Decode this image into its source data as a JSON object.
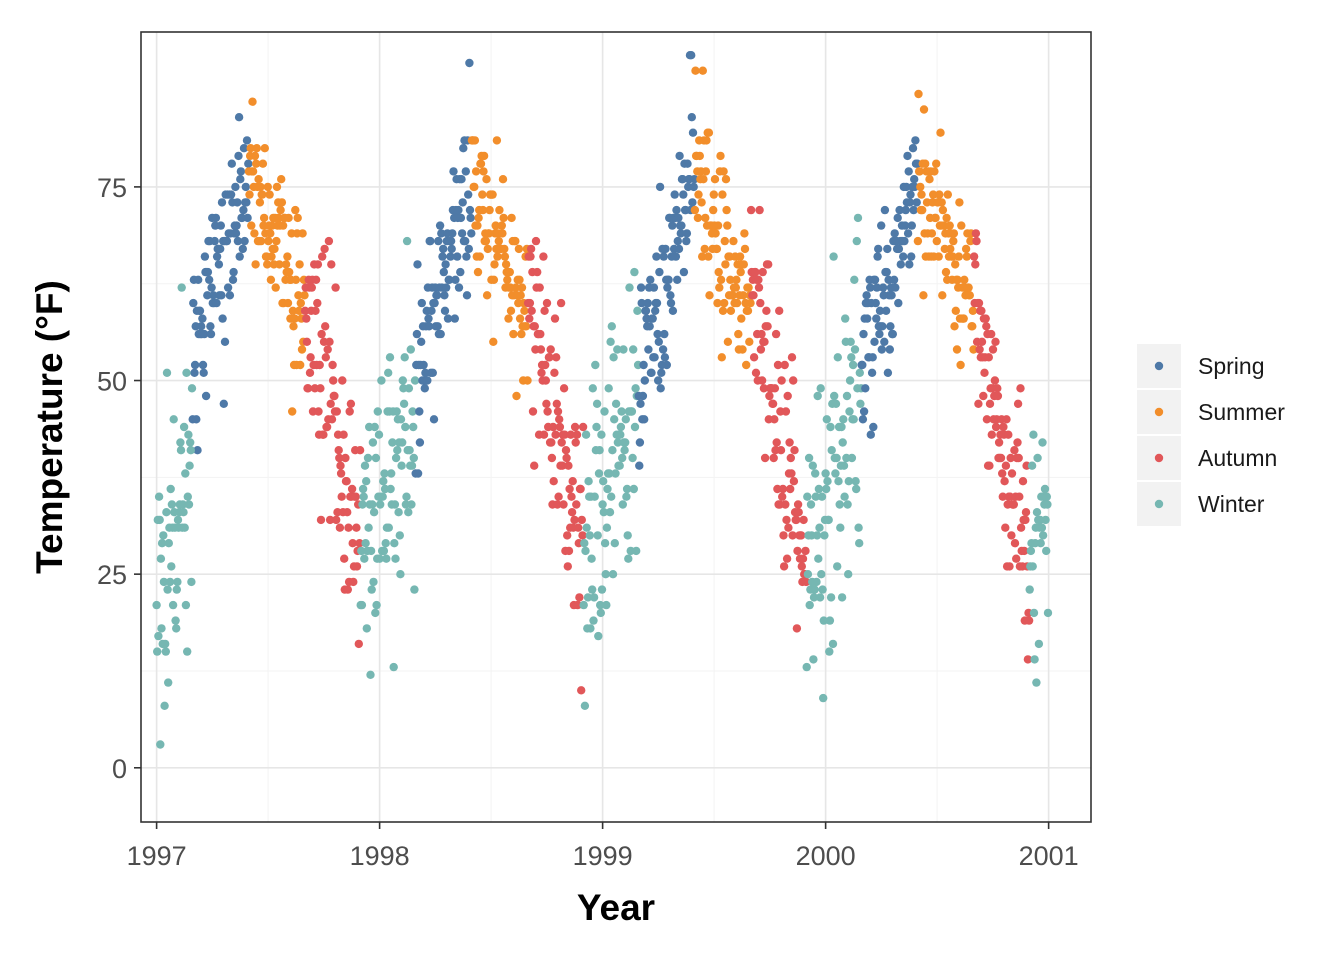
{
  "chart_data": {
    "type": "scatter",
    "title": "",
    "xlabel": "Year",
    "ylabel": "Temperature (°F)",
    "xlim": [
      1996.93,
      2001.19
    ],
    "ylim": [
      -7,
      95
    ],
    "x_ticks": [
      1997,
      1998,
      1999,
      2000,
      2001
    ],
    "y_ticks": [
      0,
      25,
      50,
      75
    ],
    "grid": true,
    "legend_position": "right",
    "colors": {
      "Spring": "#4E79A7",
      "Summer": "#F28E2B",
      "Autumn": "#E15759",
      "Winter": "#76B7B2"
    },
    "series": [
      {
        "name": "Spring",
        "label": "Spring",
        "start_day": 59,
        "end_day": 151,
        "base": 50,
        "slope": 27,
        "noise": 6
      },
      {
        "name": "Summer",
        "label": "Summer",
        "start_day": 151,
        "end_day": 243,
        "base": 76,
        "slope": -16,
        "noise": 5
      },
      {
        "name": "Autumn",
        "label": "Autumn",
        "start_day": 243,
        "end_day": 334,
        "base": 60,
        "slope": -33,
        "noise": 7
      },
      {
        "name": "Winter",
        "label": "Winter",
        "start_day": 334,
        "end_day": 424,
        "base": 27,
        "slope": 21,
        "noise": 9
      }
    ],
    "years": [
      1997,
      1998,
      1999,
      2000
    ]
  }
}
